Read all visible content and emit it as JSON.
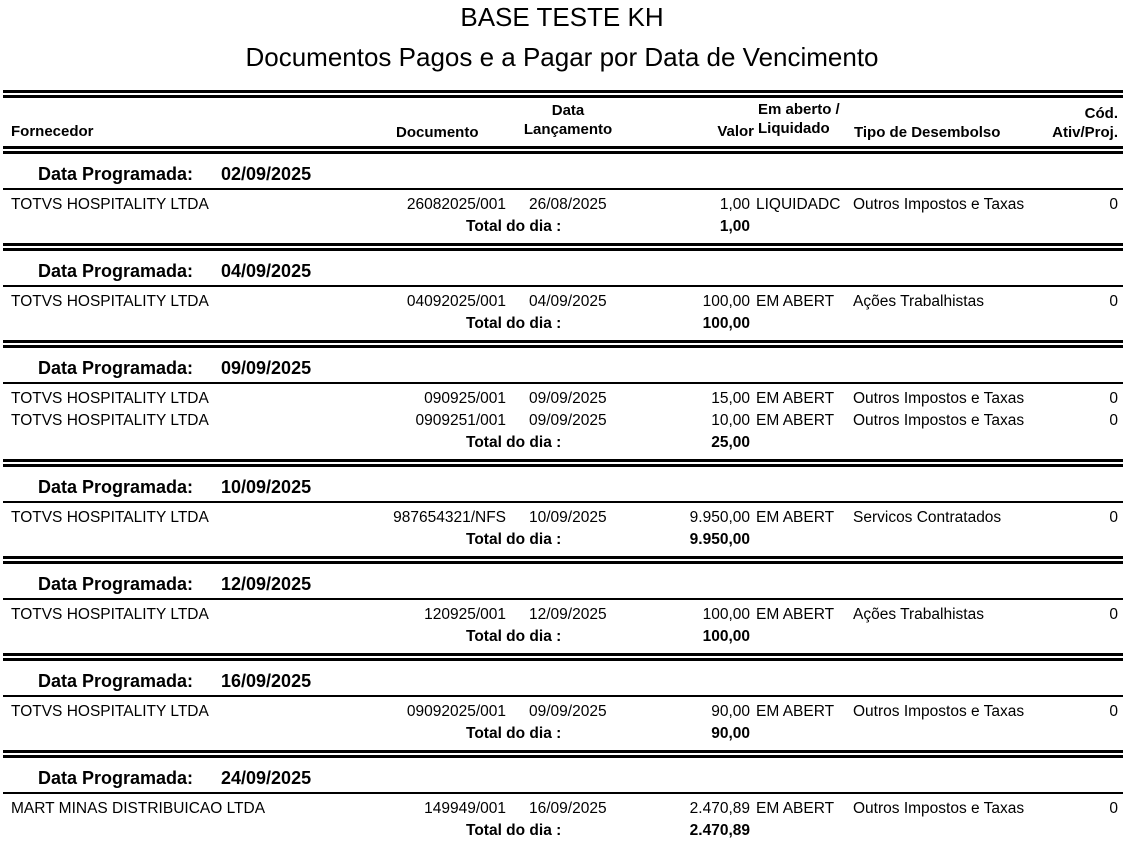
{
  "report": {
    "company": "BASE TESTE KH",
    "title": "Documentos Pagos e a Pagar por Data de Vencimento"
  },
  "columns": {
    "fornecedor": "Fornecedor",
    "documento": "Documento",
    "data_lanc_1": "Data",
    "data_lanc_2": "Lançamento",
    "valor": "Valor",
    "status_1": "Em aberto /",
    "status_2": "Liquidado",
    "tipo": "Tipo de Desembolso",
    "cod_1": "Cód.",
    "cod_2": "Ativ/Proj."
  },
  "group_label": "Data Programada:",
  "total_label": "Total do dia :",
  "groups": [
    {
      "date": "02/09/2025",
      "total": "1,00",
      "rows": [
        {
          "fornecedor": "TOTVS HOSPITALITY LTDA",
          "documento": "26082025/001",
          "data": "26/08/2025",
          "valor": "1,00",
          "status": "LIQUIDADC",
          "tipo": "Outros Impostos e Taxas",
          "cod": "0"
        }
      ]
    },
    {
      "date": "04/09/2025",
      "total": "100,00",
      "rows": [
        {
          "fornecedor": "TOTVS HOSPITALITY LTDA",
          "documento": "04092025/001",
          "data": "04/09/2025",
          "valor": "100,00",
          "status": "EM ABERT",
          "tipo": "Ações Trabalhistas",
          "cod": "0"
        }
      ]
    },
    {
      "date": "09/09/2025",
      "total": "25,00",
      "rows": [
        {
          "fornecedor": "TOTVS HOSPITALITY LTDA",
          "documento": "090925/001",
          "data": "09/09/2025",
          "valor": "15,00",
          "status": "EM ABERT",
          "tipo": "Outros Impostos e Taxas",
          "cod": "0"
        },
        {
          "fornecedor": "TOTVS HOSPITALITY LTDA",
          "documento": "0909251/001",
          "data": "09/09/2025",
          "valor": "10,00",
          "status": "EM ABERT",
          "tipo": "Outros Impostos e Taxas",
          "cod": "0"
        }
      ]
    },
    {
      "date": "10/09/2025",
      "total": "9.950,00",
      "rows": [
        {
          "fornecedor": "TOTVS HOSPITALITY LTDA",
          "documento": "987654321/NFS",
          "data": "10/09/2025",
          "valor": "9.950,00",
          "status": "EM ABERT",
          "tipo": "Servicos Contratados",
          "cod": "0"
        }
      ]
    },
    {
      "date": "12/09/2025",
      "total": "100,00",
      "rows": [
        {
          "fornecedor": "TOTVS HOSPITALITY LTDA",
          "documento": "120925/001",
          "data": "12/09/2025",
          "valor": "100,00",
          "status": "EM ABERT",
          "tipo": "Ações Trabalhistas",
          "cod": "0"
        }
      ]
    },
    {
      "date": "16/09/2025",
      "total": "90,00",
      "rows": [
        {
          "fornecedor": "TOTVS HOSPITALITY LTDA",
          "documento": "09092025/001",
          "data": "09/09/2025",
          "valor": "90,00",
          "status": "EM ABERT",
          "tipo": "Outros Impostos e Taxas",
          "cod": "0"
        }
      ]
    },
    {
      "date": "24/09/2025",
      "total": "2.470,89",
      "rows": [
        {
          "fornecedor": "MART MINAS DISTRIBUICAO LTDA",
          "documento": "149949/001",
          "data": "16/09/2025",
          "valor": "2.470,89",
          "status": "EM ABERT",
          "tipo": "Outros Impostos e Taxas",
          "cod": "0"
        }
      ]
    }
  ]
}
